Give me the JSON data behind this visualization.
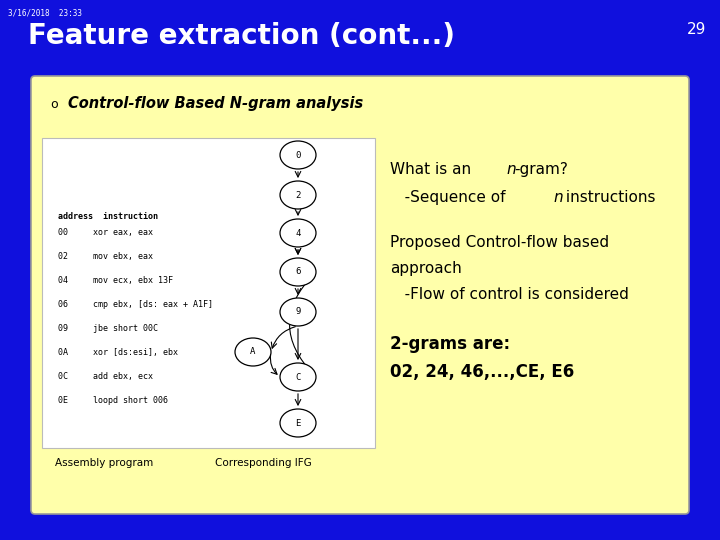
{
  "bg_color": "#1010dd",
  "content_bg": "#ffffaa",
  "title_text": "Feature extraction (cont...)",
  "title_color": "#ffffff",
  "title_fontsize": 20,
  "slide_number": "29",
  "timestamp": "3/16/2018  23:33",
  "bullet_text": "Control-flow Based N-gram analysis",
  "assembly_header": "address  instruction",
  "assembly_lines": [
    "00     xor eax, eax",
    "02     mov ebx, eax",
    "04     mov ecx, ebx 13F",
    "06     cmp ebx, [ds: eax + A1F]",
    "09     jbe short 00C",
    "0A     xor [ds:esi], ebx",
    "0C     add ebx, ecx",
    "0E     loopd short 006"
  ],
  "assembly_label": "Assembly program",
  "ifg_label": "Corresponding IFG",
  "node_labels": [
    "0",
    "2",
    "4",
    "6",
    "9",
    "A",
    "C",
    "E"
  ]
}
